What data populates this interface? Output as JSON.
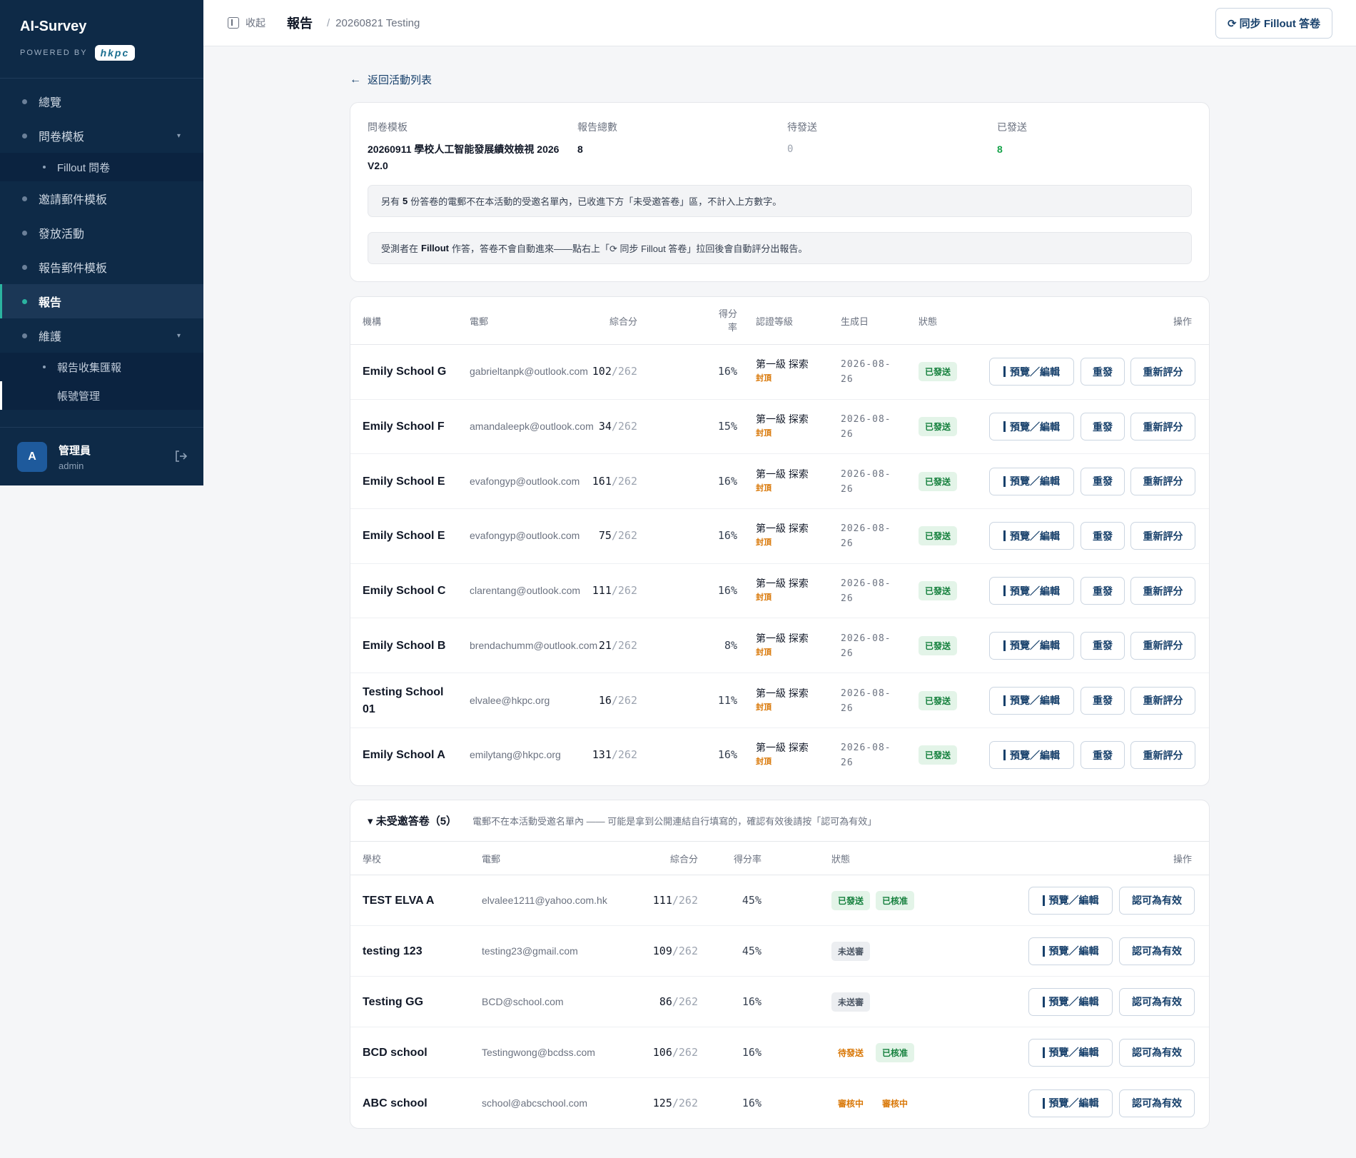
{
  "brand": {
    "title": "AI-Survey",
    "powered_by": "POWERED BY",
    "logo_text": "hkpc"
  },
  "sidebar": {
    "items": [
      {
        "label": "總覽"
      },
      {
        "label": "問卷模板",
        "caret": "▾"
      },
      {
        "label": "Fillout 問卷"
      },
      {
        "label": "邀請郵件模板"
      },
      {
        "label": "發放活動"
      },
      {
        "label": "報告郵件模板"
      },
      {
        "label": "報告"
      },
      {
        "label": "維護",
        "caret": "▾"
      },
      {
        "label": "報告收集匯報"
      },
      {
        "label": "帳號管理"
      }
    ]
  },
  "user": {
    "avatar": "A",
    "name": "管理員",
    "id": "admin"
  },
  "topbar": {
    "collapse": "收起",
    "title": "報告",
    "sep": "/",
    "sub": "20260821 Testing",
    "sync": "⟳ 同步 Fillout 答卷"
  },
  "back": {
    "arrow": "←",
    "label": "返回活動列表"
  },
  "summary": {
    "template_label": "問卷模板",
    "template_value": "20260911 學校人工智能發展績效檢視 2026 V2.0",
    "total_label": "報告總數",
    "total_value": "8",
    "pending_label": "待發送",
    "pending_value": "0",
    "sent_label": "已發送",
    "sent_value": "8",
    "notice1_pre": "另有",
    "notice1_num": "5",
    "notice1_post": "份答卷的電郵不在本活動的受邀名單內，已收進下方「未受邀答卷」區，不計入上方數字。",
    "notice2_pre": "受測者在",
    "notice2_bold": "Fillout",
    "notice2_post": "作答，答卷不會自動進來——點右上「⟳ 同步 Fillout 答卷」拉回後會自動評分出報告。"
  },
  "reports": {
    "headers": {
      "org": "機構",
      "email": "電郵",
      "score": "綜合分",
      "rate": "得分率",
      "level": "認證等級",
      "date": "生成日",
      "status": "狀態",
      "action": "操作"
    },
    "buttons": {
      "preview": "預覽／編輯",
      "resend": "重發",
      "rescore": "重新評分"
    },
    "rows": [
      {
        "org": "Emily School G",
        "email": "gabrieltanpk@outlook.com",
        "score": "102",
        "den": "/262",
        "rate": "16%",
        "level": "第一級 探索",
        "cap": "封頂",
        "date": "2026-08-26",
        "status": "已發送"
      },
      {
        "org": "Emily School F",
        "email": "amandaleepk@outlook.com",
        "score": "34",
        "den": "/262",
        "rate": "15%",
        "level": "第一級 探索",
        "cap": "封頂",
        "date": "2026-08-26",
        "status": "已發送"
      },
      {
        "org": "Emily School E",
        "email": "evafongyp@outlook.com",
        "score": "161",
        "den": "/262",
        "rate": "16%",
        "level": "第一級 探索",
        "cap": "封頂",
        "date": "2026-08-26",
        "status": "已發送"
      },
      {
        "org": "Emily School E",
        "email": "evafongyp@outlook.com",
        "score": "75",
        "den": "/262",
        "rate": "16%",
        "level": "第一級 探索",
        "cap": "封頂",
        "date": "2026-08-26",
        "status": "已發送"
      },
      {
        "org": "Emily School C",
        "email": "clarentang@outlook.com",
        "score": "111",
        "den": "/262",
        "rate": "16%",
        "level": "第一級 探索",
        "cap": "封頂",
        "date": "2026-08-26",
        "status": "已發送"
      },
      {
        "org": "Emily School B",
        "email": "brendachumm@outlook.com",
        "score": "21",
        "den": "/262",
        "rate": "8%",
        "level": "第一級 探索",
        "cap": "封頂",
        "date": "2026-08-26",
        "status": "已發送"
      },
      {
        "org": "Testing School 01",
        "email": "elvalee@hkpc.org",
        "score": "16",
        "den": "/262",
        "rate": "11%",
        "level": "第一級 探索",
        "cap": "封頂",
        "date": "2026-08-26",
        "status": "已發送"
      },
      {
        "org": "Emily School A",
        "email": "emilytang@hkpc.org",
        "score": "131",
        "den": "/262",
        "rate": "16%",
        "level": "第一級 探索",
        "cap": "封頂",
        "date": "2026-08-26",
        "status": "已發送"
      }
    ]
  },
  "uninvited": {
    "title": "▾ 未受邀答卷（5）",
    "desc": "電郵不在本活動受邀名單內 —— 可能是拿到公開連結自行填寫的，確認有效後請按「認可為有效」",
    "headers": {
      "school": "學校",
      "email": "電郵",
      "score": "綜合分",
      "rate": "得分率",
      "status": "狀態",
      "action": "操作"
    },
    "buttons": {
      "preview": "預覽／編輯",
      "approve": "認可為有效"
    },
    "rows": [
      {
        "school": "TEST ELVA A",
        "email": "elvalee1211@yahoo.com.hk",
        "score": "111",
        "den": "/262",
        "rate": "45%",
        "s1": "已發送",
        "s1c": "green",
        "s2": "已核准",
        "s2c": "green"
      },
      {
        "school": "testing 123",
        "email": "testing23@gmail.com",
        "score": "109",
        "den": "/262",
        "rate": "45%",
        "s1": "未送審",
        "s1c": "grey",
        "s2": "",
        "s2c": ""
      },
      {
        "school": "Testing GG",
        "email": "BCD@school.com",
        "score": "86",
        "den": "/262",
        "rate": "16%",
        "s1": "未送審",
        "s1c": "grey",
        "s2": "",
        "s2c": ""
      },
      {
        "school": "BCD school",
        "email": "Testingwong@bcdss.com",
        "score": "106",
        "den": "/262",
        "rate": "16%",
        "s1": "待發送",
        "s1c": "orange",
        "s2": "已核准",
        "s2c": "green"
      },
      {
        "school": "ABC school",
        "email": "school@abcschool.com",
        "score": "125",
        "den": "/262",
        "rate": "16%",
        "s1": "審核中",
        "s1c": "orange",
        "s2": "審核中",
        "s2c": "orange"
      }
    ]
  }
}
